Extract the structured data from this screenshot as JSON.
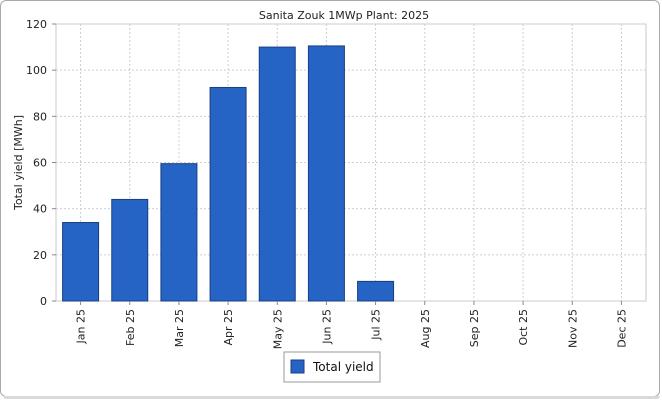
{
  "chart_data": {
    "type": "bar",
    "title": "Sanita Zouk 1MWp Plant: 2025",
    "xlabel": "",
    "ylabel": "Total yield [MWh]",
    "categories": [
      "Jan 25",
      "Feb 25",
      "Mar 25",
      "Apr 25",
      "May 25",
      "Jun 25",
      "Jul 25",
      "Aug 25",
      "Sep 25",
      "Oct 25",
      "Nov 25",
      "Dec 25"
    ],
    "series": [
      {
        "name": "Total yield",
        "values": [
          34,
          44,
          59.5,
          92.5,
          110,
          110.5,
          8.5,
          0,
          0,
          0,
          0,
          0
        ]
      }
    ],
    "ylim": [
      0,
      120
    ],
    "yticks": [
      0,
      20,
      40,
      60,
      80,
      100,
      120
    ],
    "grid": true,
    "legend": "bottom-center",
    "bar_color": "#2563c4"
  }
}
